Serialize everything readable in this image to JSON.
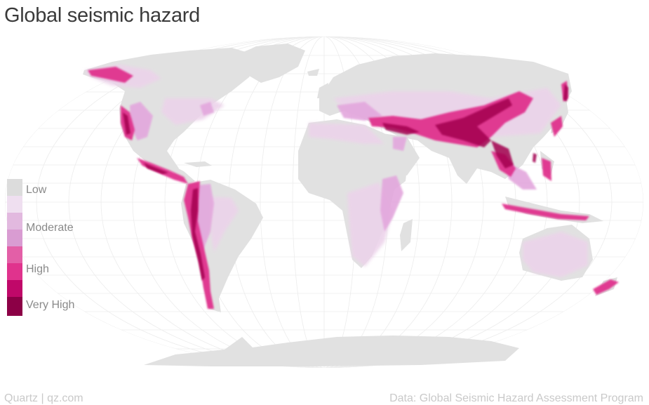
{
  "title": "Global seismic hazard",
  "legend": {
    "items": [
      {
        "label": "Low",
        "color": "#dcdcdc"
      },
      {
        "label": "Moderate",
        "color": "#d99cd2"
      },
      {
        "label": "High",
        "color": "#e0338d"
      },
      {
        "label": "Very High",
        "color": "#8c0046"
      }
    ],
    "scale_colors": [
      "#dcdcdc",
      "#efdff0",
      "#e2b9df",
      "#d99cd2",
      "#e35fa7",
      "#e0338d",
      "#c00869",
      "#8c0046"
    ]
  },
  "colors": {
    "land": "#e1e1e1",
    "graticule": "#ececec",
    "low": "#ecd3ea",
    "moderate": "#e3a7dd",
    "high": "#e0338d",
    "very_high": "#a3004f"
  },
  "footer": {
    "source_left": "Quartz | qz.com",
    "source_right": "Data: Global Seismic Hazard Assessment Program"
  }
}
